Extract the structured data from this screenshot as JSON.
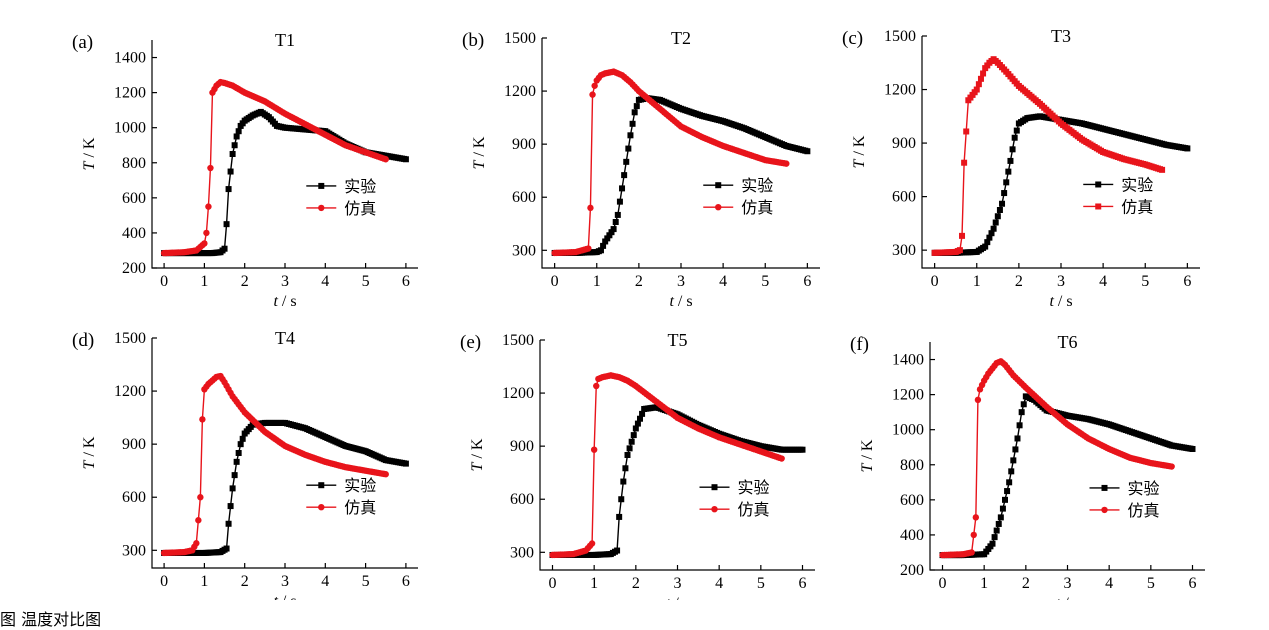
{
  "figure": {
    "caption": "图 温度对比图"
  },
  "chart_data": [
    {
      "type": "line",
      "panel_label": "(a)",
      "title": "T1",
      "xlabel": "t / s",
      "ylabel": "T / K",
      "xlim": [
        -0.3,
        6.3
      ],
      "ylim": [
        200,
        1500
      ],
      "xticks": [
        0,
        1,
        2,
        3,
        4,
        5,
        6
      ],
      "yticks": [
        200,
        400,
        600,
        800,
        1000,
        1200,
        1400
      ],
      "legend_position": "center-right",
      "series": [
        {
          "name": "实验",
          "color": "#000000",
          "marker": "square",
          "x": [
            0,
            0.5,
            1.0,
            1.2,
            1.4,
            1.5,
            1.55,
            1.6,
            1.7,
            1.8,
            1.9,
            2.0,
            2.2,
            2.4,
            2.6,
            2.8,
            3.0,
            3.5,
            4.0,
            4.5,
            5.0,
            5.5,
            6.0
          ],
          "y": [
            285,
            285,
            285,
            285,
            290,
            310,
            450,
            650,
            850,
            950,
            1010,
            1040,
            1070,
            1090,
            1060,
            1010,
            1000,
            990,
            980,
            910,
            860,
            840,
            820
          ]
        },
        {
          "name": "仿真",
          "color": "#e8141b",
          "marker": "circle",
          "x": [
            0,
            0.5,
            0.8,
            1.0,
            1.05,
            1.1,
            1.15,
            1.2,
            1.3,
            1.4,
            1.5,
            1.7,
            2.0,
            2.5,
            3.0,
            3.5,
            4.0,
            4.5,
            5.0,
            5.5
          ],
          "y": [
            285,
            290,
            300,
            340,
            400,
            550,
            770,
            1200,
            1240,
            1260,
            1255,
            1240,
            1200,
            1150,
            1080,
            1020,
            960,
            900,
            860,
            820
          ]
        }
      ]
    },
    {
      "type": "line",
      "panel_label": "(b)",
      "title": "T2",
      "xlabel": "t / s",
      "ylabel": "T / K",
      "xlim": [
        -0.3,
        6.3
      ],
      "ylim": [
        200,
        1500
      ],
      "xticks": [
        0,
        1,
        2,
        3,
        4,
        5,
        6
      ],
      "yticks": [
        300,
        600,
        900,
        1200,
        1500
      ],
      "legend_position": "center-right",
      "series": [
        {
          "name": "实验",
          "color": "#000000",
          "marker": "square",
          "x": [
            0,
            0.5,
            1.0,
            1.1,
            1.2,
            1.4,
            1.5,
            1.6,
            1.7,
            1.8,
            1.9,
            2.0,
            2.2,
            2.5,
            3.0,
            3.5,
            4.0,
            4.5,
            5.0,
            5.5,
            6.0
          ],
          "y": [
            285,
            285,
            290,
            300,
            350,
            420,
            500,
            650,
            800,
            950,
            1080,
            1150,
            1160,
            1150,
            1100,
            1060,
            1030,
            990,
            940,
            890,
            860
          ]
        },
        {
          "name": "仿真",
          "color": "#e8141b",
          "marker": "circle",
          "x": [
            0,
            0.5,
            0.8,
            0.85,
            0.9,
            0.95,
            1.0,
            1.1,
            1.2,
            1.4,
            1.6,
            1.8,
            2.0,
            2.5,
            3.0,
            3.5,
            4.0,
            4.5,
            5.0,
            5.5
          ],
          "y": [
            285,
            290,
            310,
            540,
            1180,
            1230,
            1260,
            1290,
            1300,
            1310,
            1290,
            1250,
            1200,
            1100,
            1000,
            940,
            890,
            850,
            810,
            790
          ]
        }
      ]
    },
    {
      "type": "line",
      "panel_label": "(c)",
      "title": "T3",
      "xlabel": "t / s",
      "ylabel": "T / K",
      "xlim": [
        -0.3,
        6.3
      ],
      "ylim": [
        200,
        1500
      ],
      "xticks": [
        0,
        1,
        2,
        3,
        4,
        5,
        6
      ],
      "yticks": [
        300,
        600,
        900,
        1200,
        1500
      ],
      "legend_position": "center-right",
      "series": [
        {
          "name": "实验",
          "color": "#000000",
          "marker": "square",
          "x": [
            0,
            0.5,
            1.0,
            1.2,
            1.4,
            1.6,
            1.8,
            1.9,
            2.0,
            2.2,
            2.5,
            3.0,
            3.5,
            4.0,
            4.5,
            5.0,
            5.5,
            6.0
          ],
          "y": [
            285,
            285,
            290,
            320,
            420,
            560,
            800,
            930,
            1010,
            1040,
            1050,
            1030,
            1010,
            980,
            950,
            920,
            890,
            870
          ]
        },
        {
          "name": "仿真",
          "color": "#e8141b",
          "marker": "square",
          "x": [
            0,
            0.5,
            0.6,
            0.65,
            0.7,
            0.8,
            0.9,
            1.0,
            1.1,
            1.2,
            1.3,
            1.4,
            1.5,
            1.7,
            2.0,
            2.5,
            3.0,
            3.5,
            4.0,
            4.5,
            5.0,
            5.4
          ],
          "y": [
            285,
            290,
            300,
            380,
            790,
            1140,
            1170,
            1200,
            1260,
            1320,
            1350,
            1370,
            1350,
            1300,
            1220,
            1120,
            1010,
            920,
            850,
            810,
            780,
            750
          ]
        }
      ]
    },
    {
      "type": "line",
      "panel_label": "(d)",
      "title": "T4",
      "xlabel": "t / s",
      "ylabel": "T / K",
      "xlim": [
        -0.3,
        6.3
      ],
      "ylim": [
        200,
        1500
      ],
      "xticks": [
        0,
        1,
        2,
        3,
        4,
        5,
        6
      ],
      "yticks": [
        300,
        600,
        900,
        1200,
        1500
      ],
      "legend_position": "center-right",
      "series": [
        {
          "name": "实验",
          "color": "#000000",
          "marker": "square",
          "x": [
            0,
            0.5,
            1.0,
            1.4,
            1.55,
            1.6,
            1.7,
            1.8,
            1.9,
            2.0,
            2.2,
            2.5,
            3.0,
            3.5,
            4.0,
            4.5,
            5.0,
            5.5,
            6.0
          ],
          "y": [
            285,
            285,
            285,
            290,
            310,
            450,
            650,
            800,
            900,
            960,
            1010,
            1020,
            1020,
            990,
            940,
            890,
            860,
            810,
            790
          ]
        },
        {
          "name": "仿真",
          "color": "#e8141b",
          "marker": "circle",
          "x": [
            0,
            0.5,
            0.7,
            0.8,
            0.9,
            0.95,
            1.0,
            1.1,
            1.2,
            1.3,
            1.4,
            1.5,
            1.7,
            2.0,
            2.5,
            3.0,
            3.5,
            4.0,
            4.5,
            5.0,
            5.5
          ],
          "y": [
            285,
            290,
            300,
            340,
            600,
            1040,
            1210,
            1240,
            1260,
            1280,
            1285,
            1250,
            1170,
            1080,
            970,
            890,
            840,
            800,
            770,
            750,
            730
          ]
        }
      ]
    },
    {
      "type": "line",
      "panel_label": "(e)",
      "title": "T5",
      "xlabel": "t / s",
      "ylabel": "T / K",
      "xlim": [
        -0.3,
        6.3
      ],
      "ylim": [
        200,
        1500
      ],
      "xticks": [
        0,
        1,
        2,
        3,
        4,
        5,
        6
      ],
      "yticks": [
        300,
        600,
        900,
        1200,
        1500
      ],
      "legend_position": "center-right",
      "series": [
        {
          "name": "实验",
          "color": "#000000",
          "marker": "square",
          "x": [
            0,
            0.5,
            1.0,
            1.4,
            1.55,
            1.6,
            1.7,
            1.8,
            2.0,
            2.2,
            2.5,
            3.0,
            3.5,
            4.0,
            4.5,
            5.0,
            5.5,
            6.0
          ],
          "y": [
            285,
            285,
            285,
            290,
            310,
            500,
            700,
            850,
            1000,
            1110,
            1120,
            1080,
            1020,
            970,
            930,
            900,
            880,
            880
          ]
        },
        {
          "name": "仿真",
          "color": "#e8141b",
          "marker": "circle",
          "x": [
            0,
            0.5,
            0.8,
            0.95,
            1.0,
            1.05,
            1.1,
            1.2,
            1.4,
            1.6,
            1.8,
            2.0,
            2.5,
            3.0,
            3.5,
            4.0,
            4.5,
            5.0,
            5.5
          ],
          "y": [
            285,
            290,
            310,
            350,
            880,
            1240,
            1280,
            1290,
            1300,
            1290,
            1270,
            1240,
            1150,
            1060,
            1000,
            950,
            910,
            870,
            830
          ]
        }
      ]
    },
    {
      "type": "line",
      "panel_label": "(f)",
      "title": "T6",
      "xlabel": "t / s",
      "ylabel": "T / K",
      "xlim": [
        -0.3,
        6.3
      ],
      "ylim": [
        200,
        1500
      ],
      "xticks": [
        0,
        1,
        2,
        3,
        4,
        5,
        6
      ],
      "yticks": [
        200,
        400,
        600,
        800,
        1000,
        1200,
        1400
      ],
      "legend_position": "center-right",
      "series": [
        {
          "name": "实验",
          "color": "#000000",
          "marker": "square",
          "x": [
            0,
            0.5,
            1.0,
            1.2,
            1.4,
            1.6,
            1.8,
            1.9,
            2.0,
            2.2,
            2.5,
            3.0,
            3.5,
            4.0,
            4.5,
            5.0,
            5.5,
            6.0
          ],
          "y": [
            285,
            285,
            290,
            350,
            500,
            700,
            950,
            1100,
            1190,
            1170,
            1110,
            1080,
            1060,
            1030,
            990,
            950,
            910,
            890
          ]
        },
        {
          "name": "仿真",
          "color": "#e8141b",
          "marker": "circle",
          "x": [
            0,
            0.5,
            0.7,
            0.8,
            0.85,
            0.9,
            1.0,
            1.1,
            1.2,
            1.3,
            1.4,
            1.5,
            1.7,
            2.0,
            2.5,
            3.0,
            3.5,
            4.0,
            4.5,
            5.0,
            5.5
          ],
          "y": [
            285,
            290,
            300,
            500,
            1170,
            1230,
            1280,
            1320,
            1350,
            1380,
            1390,
            1370,
            1310,
            1240,
            1130,
            1030,
            950,
            890,
            840,
            810,
            790
          ]
        }
      ]
    }
  ]
}
